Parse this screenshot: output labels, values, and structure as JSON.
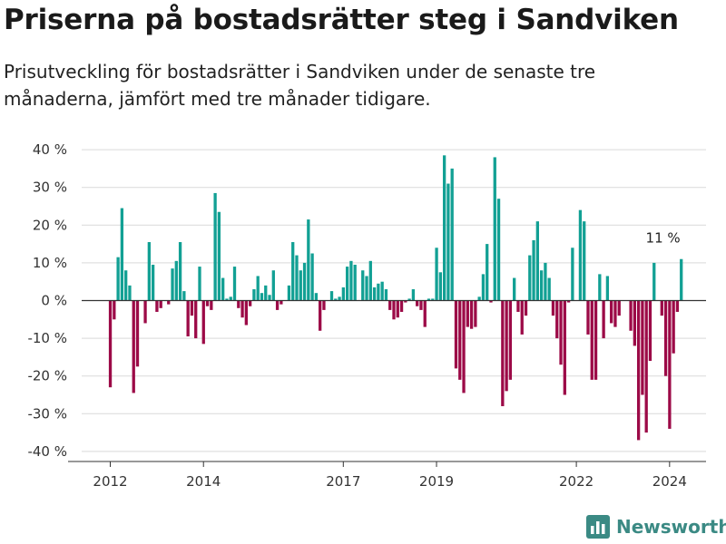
{
  "header": {
    "title": "Priserna på bostadsrätter steg i Sandviken",
    "subtitle": "Prisutveckling för bostadsrätter i Sandviken under de senaste tre månaderna, jämfört med tre månader tidigare."
  },
  "branding": {
    "name": "Newsworthy",
    "icon": "newsworthy-logo-icon"
  },
  "colors": {
    "positive": "#12a094",
    "negative": "#9c0a47",
    "grid": "#d9d9d9",
    "axis": "#333333"
  },
  "chart_data": {
    "type": "bar",
    "title": "Priserna på bostadsrätter steg i Sandviken",
    "subtitle": "Prisutveckling för bostadsrätter i Sandviken under de senaste tre månaderna, jämfört med tre månader tidigare.",
    "ylim": [
      -42,
      42
    ],
    "y_ticks": [
      40,
      30,
      20,
      10,
      0,
      -10,
      -20,
      -30,
      -40
    ],
    "y_tick_labels": [
      "40 %",
      "30 %",
      "20 %",
      "10 %",
      "0 %",
      "-10 %",
      "-20 %",
      "-30 %",
      "-40 %"
    ],
    "x_ticks": [
      {
        "label": "2012",
        "year": 2012.0
      },
      {
        "label": "2014",
        "year": 2014.0
      },
      {
        "label": "2017",
        "year": 2017.0
      },
      {
        "label": "2019",
        "year": 2019.0
      },
      {
        "label": "2022",
        "year": 2022.0
      },
      {
        "label": "2024",
        "year": 2024.0
      }
    ],
    "grid": true,
    "frequency": "monthly",
    "start": "2012-01",
    "values": [
      -23,
      -5,
      11.5,
      24.5,
      8,
      4,
      -24.5,
      -17.5,
      0,
      -6,
      15.5,
      9.5,
      -3,
      -2,
      0,
      -1,
      8.5,
      10.5,
      15.5,
      2.5,
      -9.5,
      -4,
      -10,
      9,
      -11.5,
      -1.5,
      -2.5,
      28.5,
      23.5,
      6,
      0.5,
      1,
      9,
      -2,
      -4.5,
      -6.5,
      -1.5,
      3,
      6.5,
      2,
      4,
      1.5,
      8,
      -2.5,
      -1,
      0,
      4,
      15.5,
      12,
      8,
      10,
      21.5,
      12.5,
      2,
      -8,
      -2.5,
      0,
      2.5,
      0.5,
      1,
      3.5,
      9,
      10.5,
      9.5,
      0,
      8,
      6.5,
      10.5,
      3.5,
      4.5,
      5,
      3,
      -2.5,
      -5,
      -4.5,
      -3,
      -0.5,
      0.5,
      3,
      -1.5,
      -2.5,
      -7,
      0.5,
      0.5,
      14,
      7.5,
      38.5,
      31,
      35,
      -18,
      -21,
      -24.5,
      -7,
      -7.5,
      -7,
      1,
      7,
      15,
      -0.5,
      38,
      27,
      -28,
      -24,
      -21,
      6,
      -3,
      -9,
      -4,
      12,
      16,
      21,
      8,
      10,
      6,
      -4,
      -10,
      -17,
      -25,
      -0.5,
      14,
      0,
      24,
      21,
      -9,
      -21,
      -21,
      7,
      -10,
      6.5,
      -6,
      -7,
      -4,
      0,
      0,
      -8,
      -12,
      -37,
      -25,
      -35,
      -16,
      10,
      0,
      -4,
      -20,
      -34,
      -14,
      -3,
      11
    ],
    "last_value_label": "11 %"
  }
}
